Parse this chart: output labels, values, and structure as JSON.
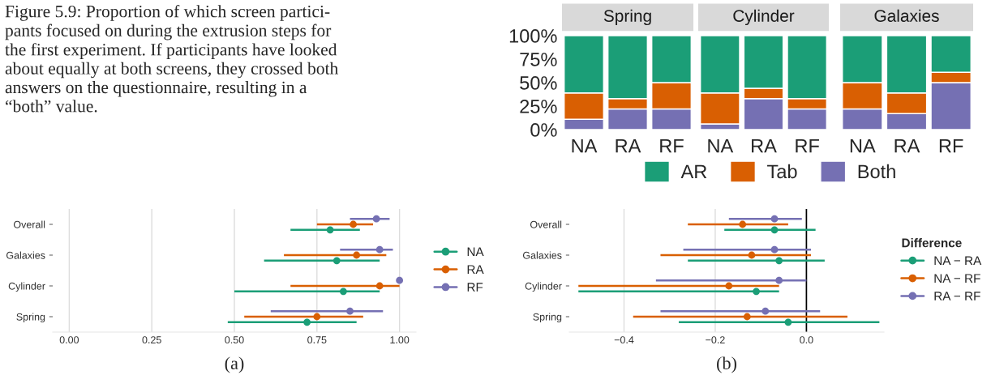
{
  "chart_data": [
    {
      "type": "bar",
      "stacked": true,
      "title": "Spring",
      "categories": [
        "NA",
        "RA",
        "RF"
      ],
      "annotations": [
        "Figure 5.9: Proportion of which screen partici-\npants focused on during the extrusion steps for\nthe first experiment. If participants have looked\nabout equally at both screens, they crossed both\nanswers on the questionnaire, resulting in a\n“both” value."
      ],
      "series": [
        {
          "color": "#7570b3",
          "values": [
            11,
            22,
            22
          ]
        },
        {
          "color": "#d95f02",
          "values": [
            28,
            11,
            28
          ]
        },
        {
          "color": "#1b9e77",
          "values": [
            61,
            67,
            50
          ]
        }
      ],
      "ylim": [
        0,
        100
      ],
      "yticks": [
        {
          "value": 0,
          "label": "0%"
        },
        {
          "value": 25,
          "label": "25%"
        },
        {
          "value": 50,
          "label": "50%"
        },
        {
          "value": 75,
          "label": "75%"
        },
        {
          "value": 100,
          "label": "100%"
        }
      ]
    },
    {
      "type": "bar",
      "stacked": true,
      "title": "Cylinder",
      "categories": [
        "NA",
        "RA",
        "RF"
      ],
      "legend": "bottom",
      "series": [
        {
          "name": "Both",
          "color": "#7570b3",
          "values": [
            6,
            33,
            22
          ]
        },
        {
          "name": "Tab",
          "color": "#d95f02",
          "values": [
            33,
            11,
            11
          ]
        },
        {
          "name": "AR",
          "color": "#1b9e77",
          "values": [
            61,
            56,
            67
          ]
        }
      ],
      "ylim": [
        0,
        100
      ],
      "tick_labels": "x"
    },
    {
      "type": "bar",
      "stacked": true,
      "title": "Galaxies",
      "categories": [
        "NA",
        "RA",
        "RF"
      ],
      "series": [
        {
          "color": "#7570b3",
          "values": [
            22,
            17,
            50
          ]
        },
        {
          "color": "#d95f02",
          "values": [
            28,
            22,
            11
          ]
        },
        {
          "color": "#1b9e77",
          "values": [
            50,
            61,
            39
          ]
        }
      ],
      "ylim": [
        0,
        100
      ],
      "tick_labels": "x"
    },
    {
      "type": "scatter",
      "orientation": "horizontal",
      "xlabel": "(a)",
      "categories": [
        "Overall",
        "Galaxies",
        "Cylinder",
        "Spring"
      ],
      "legend": "right",
      "grid": "x",
      "marker": "circle",
      "series": [
        {
          "name": "NA",
          "color": "#1b9e77",
          "values": [
            0.79,
            0.81,
            0.83,
            0.72
          ],
          "errors": [
            [
              0.67,
              0.88
            ],
            [
              0.59,
              0.94
            ],
            [
              0.5,
              0.94
            ],
            [
              0.48,
              0.87
            ]
          ]
        },
        {
          "name": "RA",
          "color": "#d95f02",
          "values": [
            0.86,
            0.87,
            0.94,
            0.75
          ],
          "errors": [
            [
              0.75,
              0.92
            ],
            [
              0.65,
              0.96
            ],
            [
              0.67,
              1.0
            ],
            [
              0.53,
              0.89
            ]
          ]
        },
        {
          "name": "RF",
          "color": "#7570b3",
          "values": [
            0.93,
            0.94,
            1.0,
            0.85
          ],
          "errors": [
            [
              0.85,
              0.97
            ],
            [
              0.82,
              0.98
            ],
            null,
            [
              0.61,
              0.95
            ]
          ]
        }
      ],
      "xlim": [
        -0.05,
        1.05
      ],
      "xticks": [
        {
          "value": 0,
          "label": "0.00"
        },
        {
          "value": 0.25,
          "label": "0.25"
        },
        {
          "value": 0.5,
          "label": "0.50"
        },
        {
          "value": 0.75,
          "label": "0.75"
        },
        {
          "value": 1,
          "label": "1.00"
        }
      ]
    },
    {
      "type": "scatter",
      "orientation": "horizontal",
      "xlabel": "(b)",
      "legend_title": "Difference",
      "categories": [
        "Overall",
        "Galaxies",
        "Cylinder",
        "Spring"
      ],
      "legend": "right",
      "grid": "x",
      "marker": "circle",
      "series": [
        {
          "name": "NA − RA",
          "color": "#1b9e77",
          "values": [
            -0.07,
            -0.06,
            -0.11,
            -0.04
          ],
          "errors": [
            [
              -0.18,
              0.02
            ],
            [
              -0.26,
              0.04
            ],
            [
              -0.5,
              -0.06
            ],
            [
              -0.28,
              0.16
            ]
          ]
        },
        {
          "name": "NA − RF",
          "color": "#d95f02",
          "values": [
            -0.14,
            -0.12,
            -0.17,
            -0.13
          ],
          "errors": [
            [
              -0.26,
              -0.04
            ],
            [
              -0.32,
              0.01
            ],
            [
              -0.5,
              -0.06
            ],
            [
              -0.38,
              0.09
            ]
          ]
        },
        {
          "name": "RA − RF",
          "color": "#7570b3",
          "values": [
            -0.07,
            -0.07,
            -0.06,
            -0.09
          ],
          "errors": [
            [
              -0.17,
              -0.01
            ],
            [
              -0.27,
              0.01
            ],
            [
              -0.33,
              0.0
            ],
            [
              -0.32,
              0.03
            ]
          ]
        }
      ],
      "ref_lines": [
        {
          "axis": "x",
          "value": 0,
          "color": "#000000"
        }
      ],
      "xlim": [
        -0.52,
        0.17
      ],
      "xticks": [
        {
          "value": -0.4,
          "label": "−0.4"
        },
        {
          "value": -0.2,
          "label": "−0.2"
        },
        {
          "value": 0,
          "label": "0.0"
        }
      ]
    }
  ]
}
